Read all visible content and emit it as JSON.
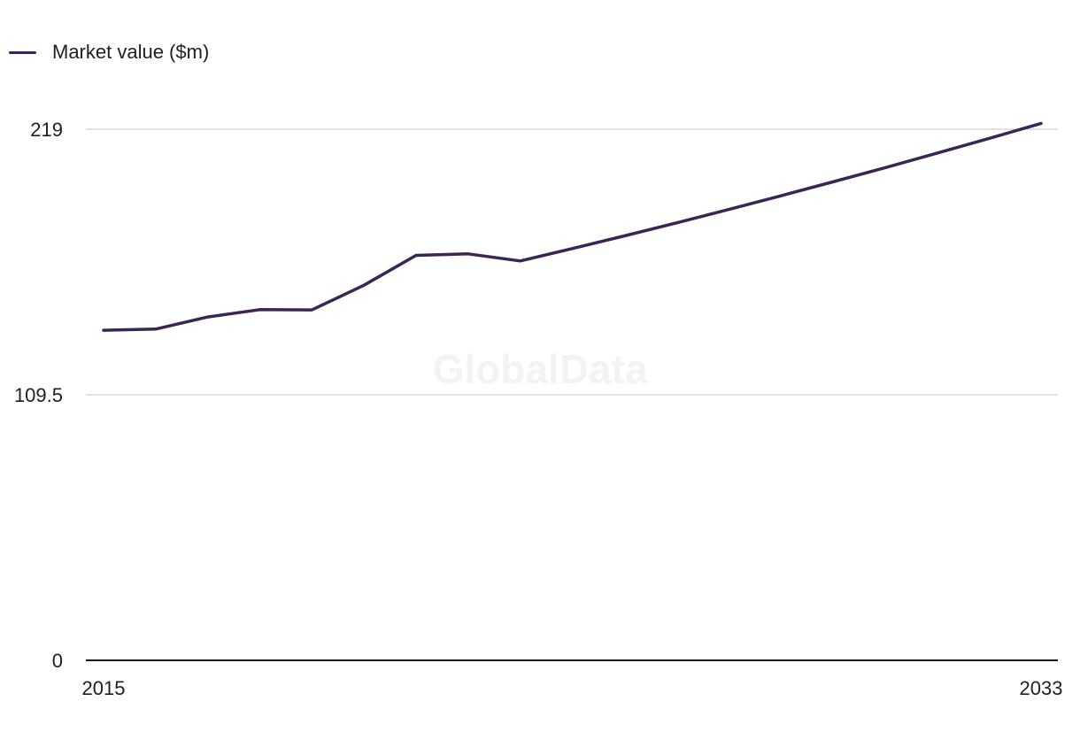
{
  "legend": {
    "label": "Market value ($m)"
  },
  "watermark": "GlobalData",
  "colors": {
    "line": "#3a2654",
    "grid": "#d9d9d9",
    "axis": "#1a1a1a"
  },
  "chart_data": {
    "type": "line",
    "title": "",
    "xlabel": "",
    "ylabel": "",
    "x": [
      2015,
      2016,
      2017,
      2018,
      2019,
      2020,
      2021,
      2022,
      2023,
      2024,
      2025,
      2026,
      2027,
      2028,
      2029,
      2030,
      2031,
      2032,
      2033
    ],
    "series": [
      {
        "name": "Market value ($m)",
        "values": [
          136.1,
          136.6,
          141.6,
          144.6,
          144.5,
          154.7,
          167.0,
          167.6,
          164.7,
          169.8,
          175.0,
          180.4,
          185.9,
          191.5,
          197.3,
          203.1,
          209.1,
          215.2,
          221.4
        ]
      }
    ],
    "ylim": [
      0,
      219
    ],
    "yticks": [
      "0",
      "109.5",
      "219"
    ],
    "xticks": [
      "2015",
      "2033"
    ],
    "grid": true,
    "legend_position": "top-left"
  }
}
